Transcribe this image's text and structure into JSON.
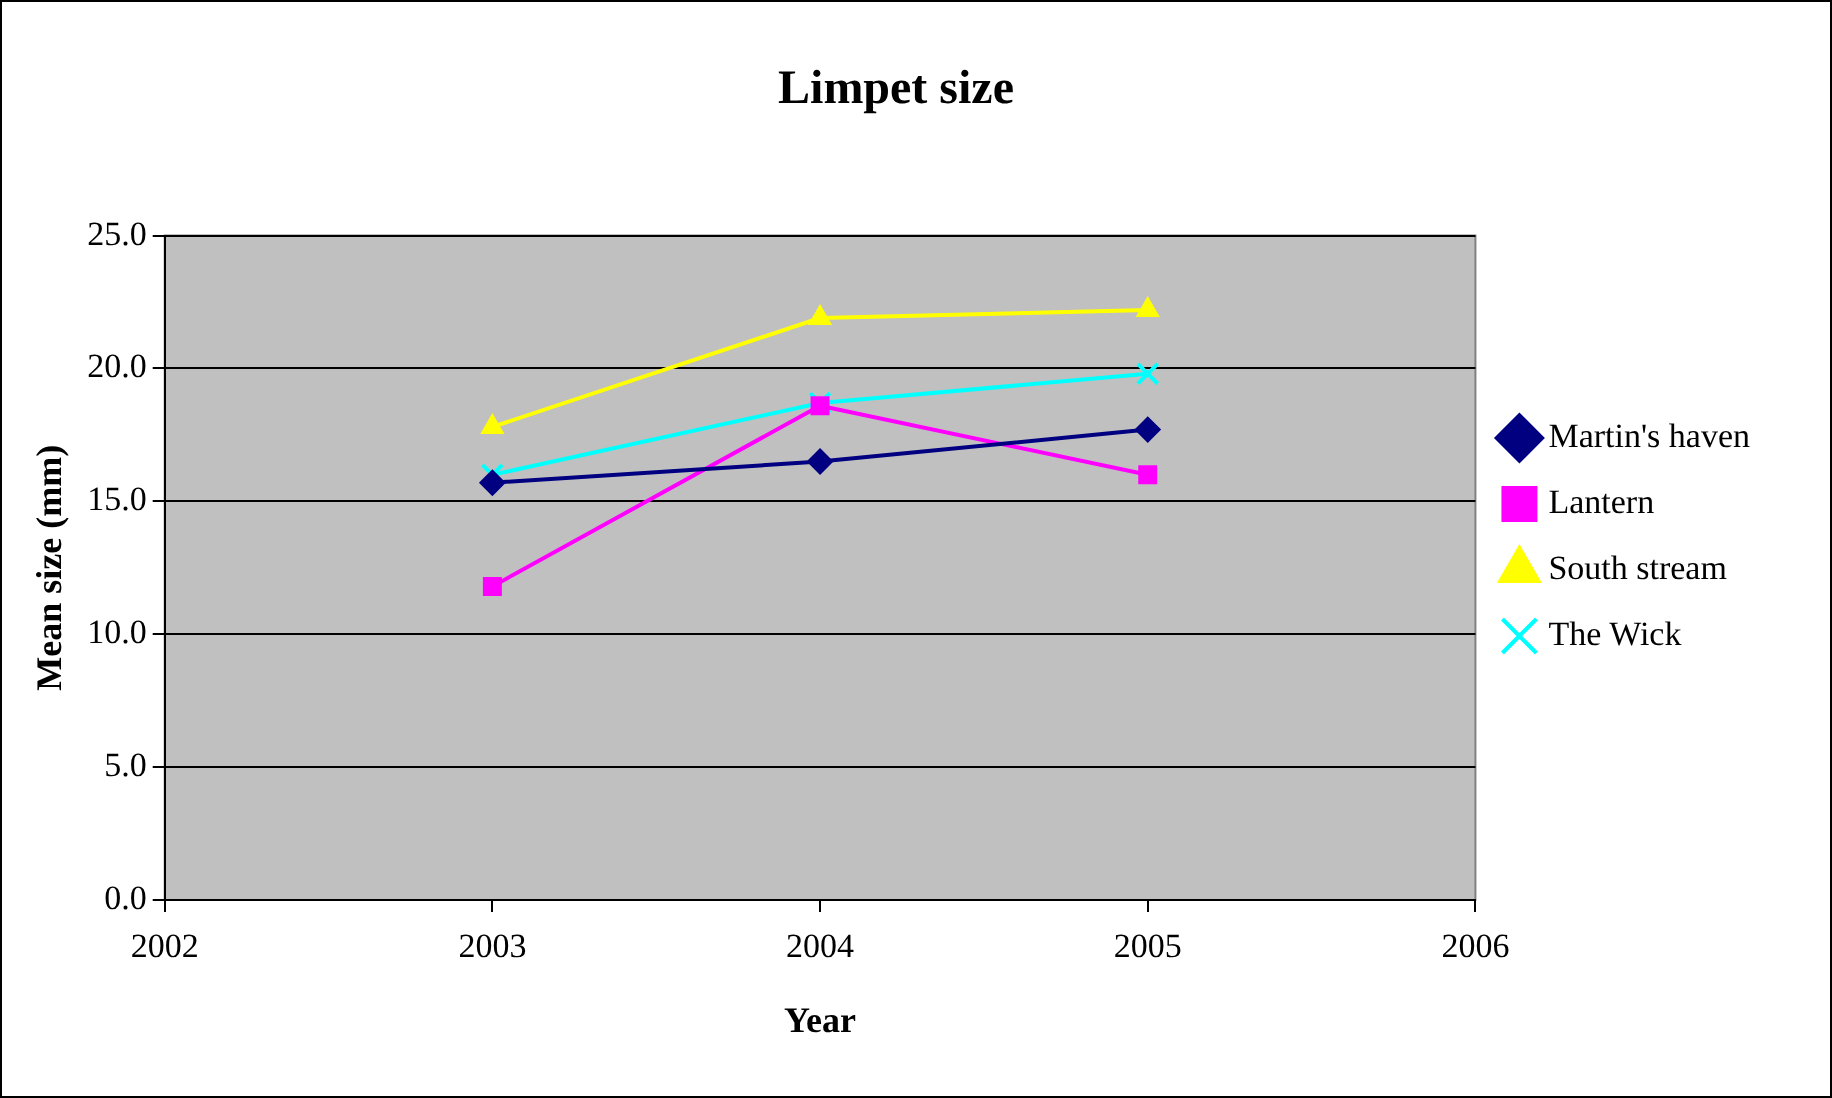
{
  "chart_data": {
    "type": "line",
    "title": "Limpet size",
    "xlabel": "Year",
    "ylabel": "Mean size (mm)",
    "x": [
      2003,
      2004,
      2005
    ],
    "series": [
      {
        "name": "Martin's haven",
        "color": "#000080",
        "marker": "diamond",
        "values": [
          15.7,
          16.5,
          17.7
        ]
      },
      {
        "name": "Lantern",
        "color": "#ff00ff",
        "marker": "square",
        "values": [
          11.8,
          18.6,
          16.0
        ]
      },
      {
        "name": "South stream",
        "color": "#ffff00",
        "marker": "triangle",
        "values": [
          17.8,
          21.9,
          22.2
        ]
      },
      {
        "name": "The Wick",
        "color": "#00ffff",
        "marker": "cross",
        "values": [
          16.0,
          18.7,
          19.8
        ]
      }
    ],
    "xlim": [
      2002,
      2006
    ],
    "xticks": [
      2002,
      2003,
      2004,
      2005,
      2006
    ],
    "ylim": [
      0,
      25
    ],
    "yticks": [
      {
        "value": 0,
        "label": "0.0"
      },
      {
        "value": 5,
        "label": "5.0"
      },
      {
        "value": 10,
        "label": "10.0"
      },
      {
        "value": 15,
        "label": "15.0"
      },
      {
        "value": 20,
        "label": "20.0"
      },
      {
        "value": 25,
        "label": "25.0"
      }
    ],
    "grid": "y",
    "legend": "right",
    "line_style": "solid"
  }
}
